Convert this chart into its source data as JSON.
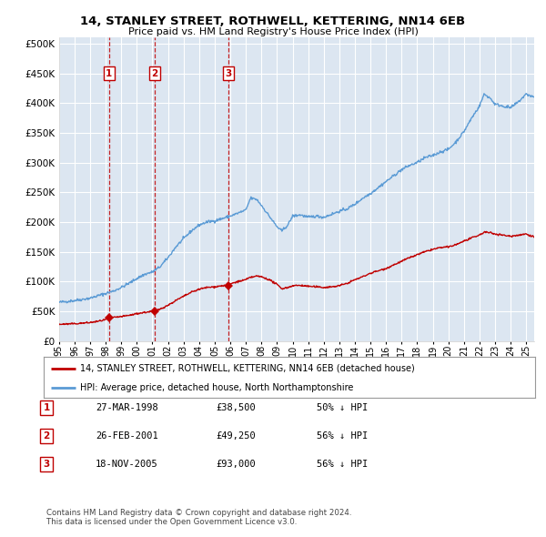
{
  "title": "14, STANLEY STREET, ROTHWELL, KETTERING, NN14 6EB",
  "subtitle": "Price paid vs. HM Land Registry's House Price Index (HPI)",
  "ytick_values": [
    0,
    50000,
    100000,
    150000,
    200000,
    250000,
    300000,
    350000,
    400000,
    450000,
    500000
  ],
  "ylim": [
    0,
    510000
  ],
  "xlim_start": 1995.0,
  "xlim_end": 2025.5,
  "hpi_color": "#5b9bd5",
  "hpi_fill_color": "#dce6f1",
  "price_color": "#c00000",
  "transactions": [
    {
      "date_num": 1998.22,
      "price": 38500,
      "label": "1"
    },
    {
      "date_num": 2001.15,
      "price": 49250,
      "label": "2"
    },
    {
      "date_num": 2005.89,
      "price": 93000,
      "label": "3"
    }
  ],
  "legend_property_label": "14, STANLEY STREET, ROTHWELL, KETTERING, NN14 6EB (detached house)",
  "legend_hpi_label": "HPI: Average price, detached house, North Northamptonshire",
  "table_rows": [
    {
      "num": "1",
      "date": "27-MAR-1998",
      "price": "£38,500",
      "pct": "50% ↓ HPI"
    },
    {
      "num": "2",
      "date": "26-FEB-2001",
      "price": "£49,250",
      "pct": "56% ↓ HPI"
    },
    {
      "num": "3",
      "date": "18-NOV-2005",
      "price": "£93,000",
      "pct": "56% ↓ HPI"
    }
  ],
  "footnote": "Contains HM Land Registry data © Crown copyright and database right 2024.\nThis data is licensed under the Open Government Licence v3.0.",
  "background_color": "#ffffff",
  "plot_bg_color": "#dce6f1",
  "grid_color": "#ffffff",
  "xtick_years": [
    1995,
    1996,
    1997,
    1998,
    1999,
    2000,
    2001,
    2002,
    2003,
    2004,
    2005,
    2006,
    2007,
    2008,
    2009,
    2010,
    2011,
    2012,
    2013,
    2014,
    2015,
    2016,
    2017,
    2018,
    2019,
    2020,
    2021,
    2022,
    2023,
    2024,
    2025
  ],
  "hpi_anchors": [
    [
      1995.0,
      65000
    ],
    [
      1995.5,
      66500
    ],
    [
      1996.0,
      68000
    ],
    [
      1996.5,
      70000
    ],
    [
      1997.0,
      72000
    ],
    [
      1997.5,
      76000
    ],
    [
      1998.0,
      80000
    ],
    [
      1998.5,
      84000
    ],
    [
      1999.0,
      90000
    ],
    [
      1999.5,
      97000
    ],
    [
      2000.0,
      105000
    ],
    [
      2000.5,
      112000
    ],
    [
      2001.0,
      116000
    ],
    [
      2001.5,
      125000
    ],
    [
      2002.0,
      140000
    ],
    [
      2002.5,
      158000
    ],
    [
      2003.0,
      172000
    ],
    [
      2003.5,
      185000
    ],
    [
      2004.0,
      195000
    ],
    [
      2004.5,
      200000
    ],
    [
      2005.0,
      202000
    ],
    [
      2005.5,
      206000
    ],
    [
      2006.0,
      210000
    ],
    [
      2006.5,
      215000
    ],
    [
      2007.0,
      220000
    ],
    [
      2007.3,
      240000
    ],
    [
      2007.7,
      238000
    ],
    [
      2008.0,
      228000
    ],
    [
      2008.5,
      210000
    ],
    [
      2009.0,
      192000
    ],
    [
      2009.3,
      185000
    ],
    [
      2009.7,
      195000
    ],
    [
      2010.0,
      210000
    ],
    [
      2010.5,
      212000
    ],
    [
      2011.0,
      208000
    ],
    [
      2011.5,
      210000
    ],
    [
      2012.0,
      208000
    ],
    [
      2012.5,
      213000
    ],
    [
      2013.0,
      218000
    ],
    [
      2013.5,
      222000
    ],
    [
      2014.0,
      230000
    ],
    [
      2014.5,
      240000
    ],
    [
      2015.0,
      248000
    ],
    [
      2015.5,
      258000
    ],
    [
      2016.0,
      268000
    ],
    [
      2016.5,
      278000
    ],
    [
      2017.0,
      288000
    ],
    [
      2017.5,
      295000
    ],
    [
      2018.0,
      300000
    ],
    [
      2018.5,
      308000
    ],
    [
      2019.0,
      312000
    ],
    [
      2019.5,
      318000
    ],
    [
      2020.0,
      322000
    ],
    [
      2020.5,
      335000
    ],
    [
      2021.0,
      352000
    ],
    [
      2021.5,
      375000
    ],
    [
      2022.0,
      395000
    ],
    [
      2022.3,
      415000
    ],
    [
      2022.7,
      408000
    ],
    [
      2023.0,
      398000
    ],
    [
      2023.5,
      395000
    ],
    [
      2024.0,
      392000
    ],
    [
      2024.5,
      402000
    ],
    [
      2025.0,
      415000
    ],
    [
      2025.5,
      410000
    ]
  ],
  "price_anchors": [
    [
      1995.0,
      28000
    ],
    [
      1995.5,
      28500
    ],
    [
      1996.0,
      29000
    ],
    [
      1996.5,
      30000
    ],
    [
      1997.0,
      31000
    ],
    [
      1997.5,
      33000
    ],
    [
      1998.0,
      36000
    ],
    [
      1998.22,
      38500
    ],
    [
      1998.5,
      39500
    ],
    [
      1999.0,
      41000
    ],
    [
      1999.5,
      43000
    ],
    [
      2000.0,
      46000
    ],
    [
      2000.5,
      48000
    ],
    [
      2001.0,
      50000
    ],
    [
      2001.15,
      49250
    ],
    [
      2001.5,
      54000
    ],
    [
      2002.0,
      60000
    ],
    [
      2002.5,
      68000
    ],
    [
      2003.0,
      75000
    ],
    [
      2003.5,
      82000
    ],
    [
      2004.0,
      87000
    ],
    [
      2004.5,
      90000
    ],
    [
      2005.0,
      91000
    ],
    [
      2005.5,
      93000
    ],
    [
      2005.89,
      93000
    ],
    [
      2006.0,
      96000
    ],
    [
      2006.5,
      100000
    ],
    [
      2007.0,
      103000
    ],
    [
      2007.3,
      107000
    ],
    [
      2007.7,
      109000
    ],
    [
      2008.0,
      108000
    ],
    [
      2008.5,
      103000
    ],
    [
      2009.0,
      95000
    ],
    [
      2009.3,
      88000
    ],
    [
      2009.7,
      90000
    ],
    [
      2010.0,
      93000
    ],
    [
      2010.5,
      93500
    ],
    [
      2011.0,
      92000
    ],
    [
      2011.5,
      91000
    ],
    [
      2012.0,
      90000
    ],
    [
      2012.5,
      91000
    ],
    [
      2013.0,
      93000
    ],
    [
      2013.5,
      97000
    ],
    [
      2014.0,
      103000
    ],
    [
      2014.5,
      108000
    ],
    [
      2015.0,
      114000
    ],
    [
      2015.5,
      118000
    ],
    [
      2016.0,
      122000
    ],
    [
      2016.5,
      128000
    ],
    [
      2017.0,
      134000
    ],
    [
      2017.5,
      140000
    ],
    [
      2018.0,
      145000
    ],
    [
      2018.5,
      150000
    ],
    [
      2019.0,
      154000
    ],
    [
      2019.5,
      157000
    ],
    [
      2020.0,
      158000
    ],
    [
      2020.5,
      162000
    ],
    [
      2021.0,
      168000
    ],
    [
      2021.5,
      173000
    ],
    [
      2022.0,
      178000
    ],
    [
      2022.3,
      183000
    ],
    [
      2022.7,
      182000
    ],
    [
      2023.0,
      180000
    ],
    [
      2023.5,
      178000
    ],
    [
      2024.0,
      176000
    ],
    [
      2024.5,
      178000
    ],
    [
      2025.0,
      180000
    ],
    [
      2025.5,
      175000
    ]
  ]
}
